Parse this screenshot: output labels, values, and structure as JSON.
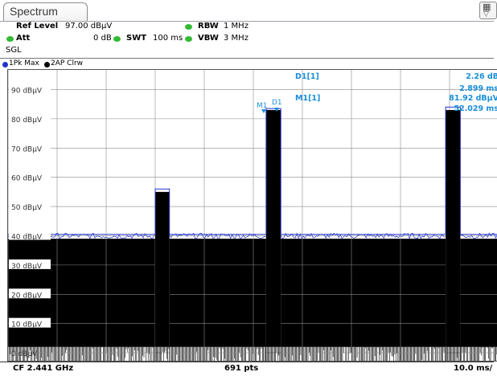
{
  "tab": {
    "label": "Spectrum"
  },
  "settings": {
    "ref_level_label": "Ref Level",
    "ref_level_value": "97.00 dBµV",
    "att_label": "Att",
    "att_value": "0 dB",
    "swt_label": "SWT",
    "swt_value": "100 ms",
    "rbw_label": "RBW",
    "rbw_value": "1 MHz",
    "vbw_label": "VBW",
    "vbw_value": "3 MHz",
    "mode": "SGL"
  },
  "traces": {
    "t1": "1Pk Max",
    "t2": "2AP Clrw"
  },
  "markers": {
    "d1_label": "D1[1]",
    "d1_level": "2.26 dB",
    "d1_time": "2.899 ms",
    "m1_label": "M1[1]",
    "m1_level": "81.92 dBµV",
    "m1_time": "52.029 ms",
    "m1_flag": "M1",
    "d1_flag": "D1"
  },
  "footer": {
    "center_freq": "CF 2.441 GHz",
    "points": "691 pts",
    "sweep": "10.0 ms/"
  },
  "colors": {
    "max_trace": "#2233cc",
    "clrw_trace": "#000000",
    "marker": "#1a8fd8",
    "indicator": "#33bb33"
  },
  "chart_data": {
    "type": "line",
    "xlabel": "",
    "ylabel": "",
    "y_ticks": [
      "0 dBµV",
      "10 dBµV",
      "20 dBµV",
      "30 dBµV",
      "40 dBµV",
      "50 dBµV",
      "60 dBµV",
      "70 dBµV",
      "80 dBµV",
      "90 dBµV"
    ],
    "y_tick_values": [
      0,
      10,
      20,
      30,
      40,
      50,
      60,
      70,
      80,
      90
    ],
    "ylim": [
      -3,
      97
    ],
    "xlim": [
      0,
      100
    ],
    "x_unit": "ms",
    "grid": true,
    "series": [
      {
        "name": "1Pk Max",
        "x": [
          0,
          30.0,
          30.0,
          32.9,
          32.9,
          52.6,
          52.6,
          55.6,
          55.6,
          89.2,
          89.2,
          92.2,
          92.2,
          100
        ],
        "y": [
          40.5,
          40.5,
          56.0,
          56.0,
          40.5,
          40.5,
          83.5,
          83.5,
          40.5,
          40.5,
          84.0,
          84.0,
          40.5,
          40.5
        ]
      },
      {
        "name": "2AP Clrw",
        "x": [
          0,
          30.0,
          30.0,
          32.9,
          32.9,
          52.6,
          52.6,
          55.6,
          55.6,
          89.2,
          89.2,
          92.2,
          92.2,
          100
        ],
        "y": [
          39.0,
          39.0,
          55.0,
          55.0,
          39.0,
          39.0,
          83.0,
          83.0,
          39.0,
          39.0,
          83.0,
          83.0,
          39.0,
          39.0
        ]
      }
    ]
  }
}
